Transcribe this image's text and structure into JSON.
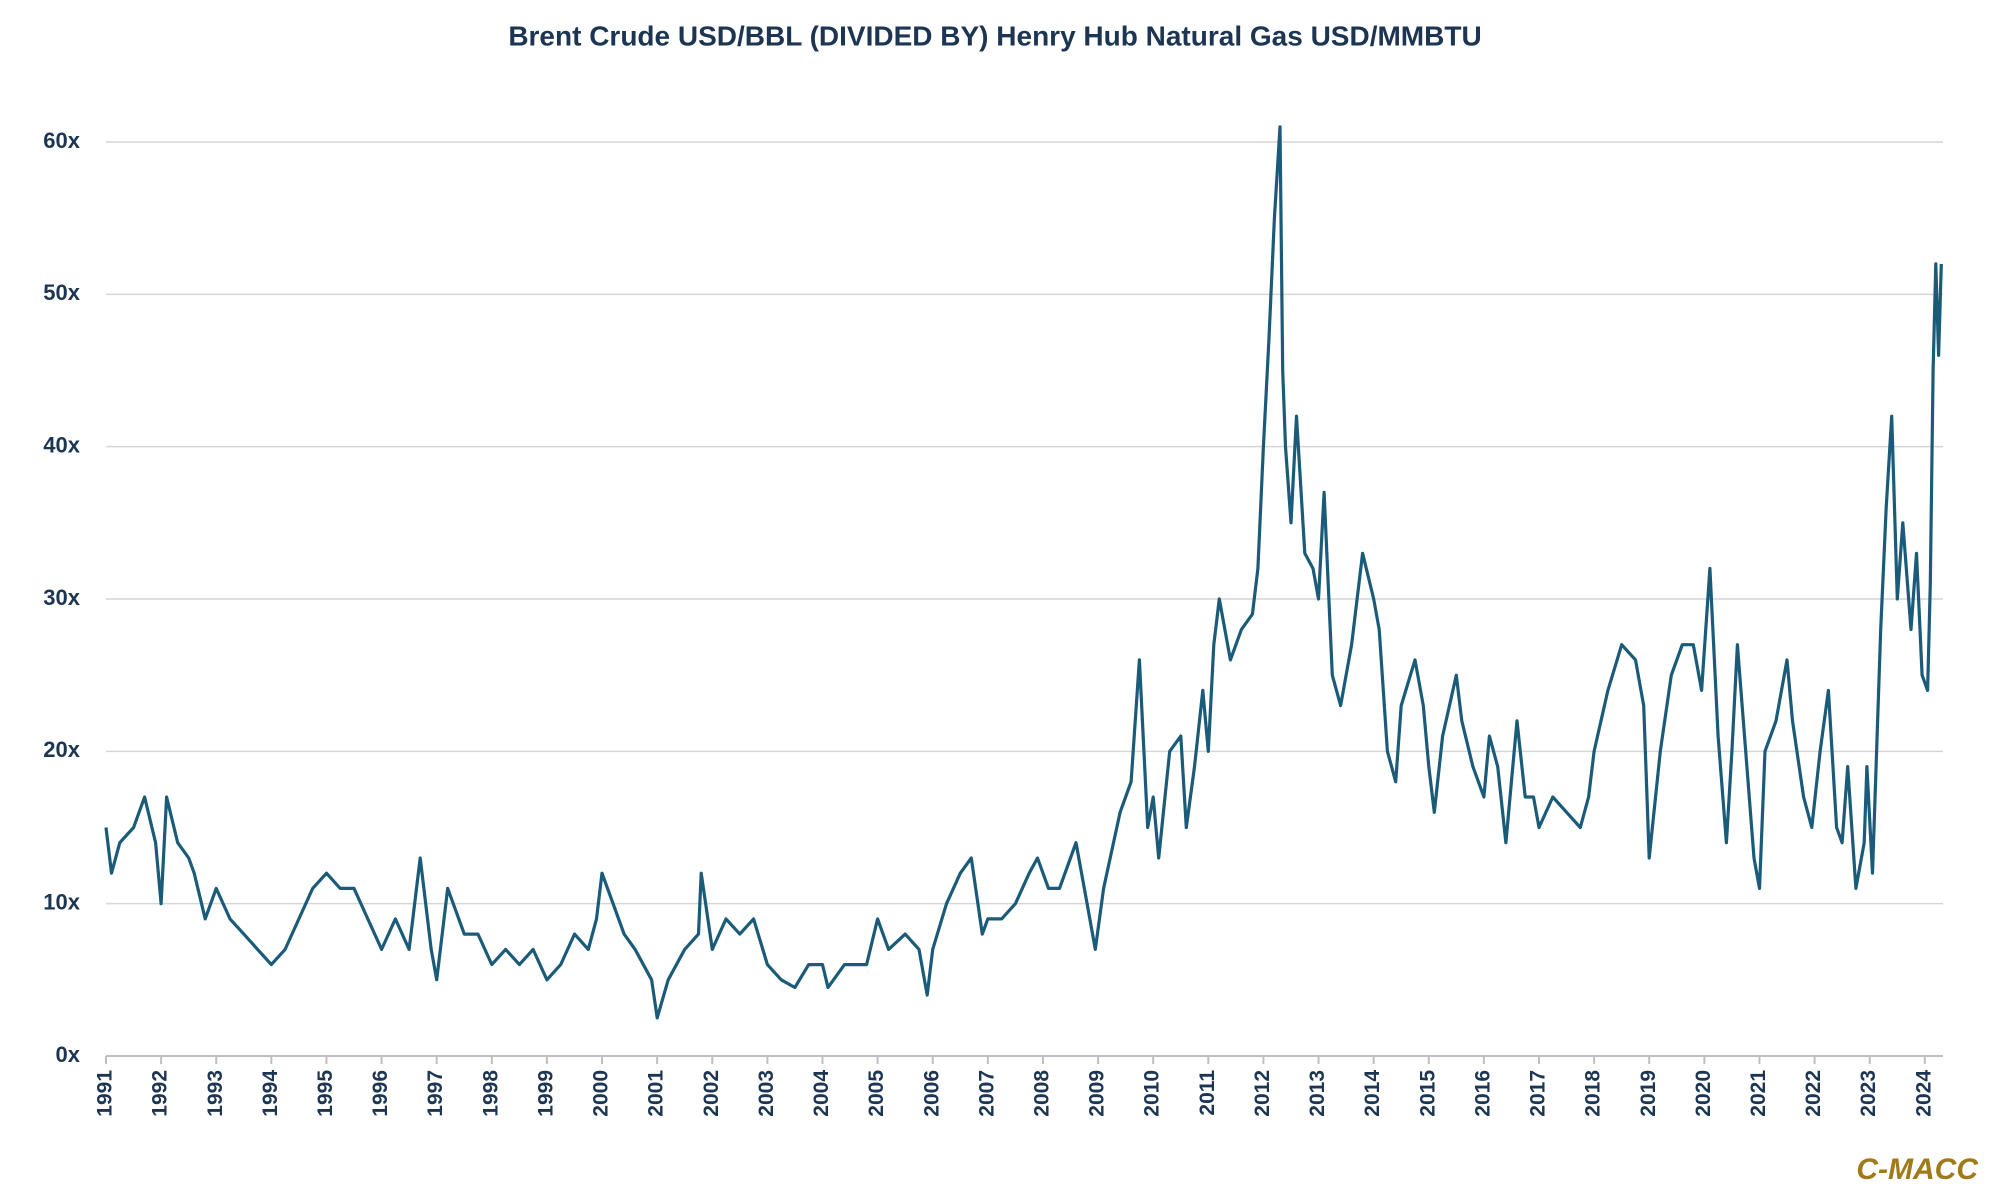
{
  "chart_data": {
    "type": "line",
    "title": "Brent Crude USD/BBL (DIVIDED BY) Henry Hub Natural Gas USD/MMBTU",
    "watermark": "C-MACC",
    "color": "#1b5b7a",
    "grid": true,
    "x": [
      1991.0,
      1991.1,
      1991.25,
      1991.5,
      1991.7,
      1991.9,
      1992.0,
      1992.1,
      1992.3,
      1992.5,
      1992.6,
      1992.8,
      1993.0,
      1993.25,
      1993.5,
      1993.75,
      1994.0,
      1994.25,
      1994.5,
      1994.75,
      1995.0,
      1995.25,
      1995.5,
      1995.75,
      1996.0,
      1996.25,
      1996.5,
      1996.7,
      1996.9,
      1997.0,
      1997.2,
      1997.5,
      1997.75,
      1998.0,
      1998.25,
      1998.5,
      1998.75,
      1999.0,
      1999.25,
      1999.5,
      1999.75,
      1999.9,
      2000.0,
      2000.2,
      2000.4,
      2000.6,
      2000.9,
      2001.0,
      2001.2,
      2001.5,
      2001.75,
      2001.8,
      2002.0,
      2002.25,
      2002.5,
      2002.75,
      2003.0,
      2003.25,
      2003.5,
      2003.75,
      2004.0,
      2004.1,
      2004.4,
      2004.6,
      2004.8,
      2005.0,
      2005.2,
      2005.5,
      2005.75,
      2005.9,
      2006.0,
      2006.25,
      2006.5,
      2006.7,
      2006.9,
      2007.0,
      2007.25,
      2007.5,
      2007.75,
      2007.9,
      2008.1,
      2008.3,
      2008.6,
      2008.8,
      2008.95,
      2009.1,
      2009.4,
      2009.6,
      2009.75,
      2009.9,
      2010.0,
      2010.1,
      2010.3,
      2010.5,
      2010.6,
      2010.75,
      2010.9,
      2011.0,
      2011.1,
      2011.2,
      2011.4,
      2011.6,
      2011.8,
      2011.9,
      2012.0,
      2012.1,
      2012.2,
      2012.3,
      2012.35,
      2012.4,
      2012.5,
      2012.6,
      2012.75,
      2012.9,
      2013.0,
      2013.1,
      2013.25,
      2013.4,
      2013.6,
      2013.8,
      2014.0,
      2014.1,
      2014.25,
      2014.4,
      2014.5,
      2014.75,
      2014.9,
      2015.0,
      2015.1,
      2015.25,
      2015.5,
      2015.6,
      2015.8,
      2016.0,
      2016.1,
      2016.25,
      2016.4,
      2016.5,
      2016.6,
      2016.75,
      2016.9,
      2017.0,
      2017.25,
      2017.5,
      2017.75,
      2017.9,
      2018.0,
      2018.25,
      2018.5,
      2018.75,
      2018.9,
      2019.0,
      2019.2,
      2019.4,
      2019.6,
      2019.8,
      2019.95,
      2020.1,
      2020.25,
      2020.4,
      2020.5,
      2020.6,
      2020.75,
      2020.9,
      2021.0,
      2021.1,
      2021.3,
      2021.5,
      2021.6,
      2021.8,
      2021.95,
      2022.1,
      2022.25,
      2022.4,
      2022.5,
      2022.6,
      2022.75,
      2022.9,
      2022.95,
      2023.05,
      2023.2,
      2023.3,
      2023.4,
      2023.5,
      2023.6,
      2023.75,
      2023.85,
      2023.95,
      2024.05,
      2024.1,
      2024.15,
      2024.2,
      2024.25,
      2024.3
    ],
    "values": [
      15,
      12,
      14,
      15,
      17,
      14,
      10,
      17,
      14,
      13,
      12,
      9,
      11,
      9,
      8,
      7,
      6,
      7,
      9,
      11,
      12,
      11,
      11,
      9,
      7,
      9,
      7,
      13,
      7,
      5,
      11,
      8,
      8,
      6,
      7,
      6,
      7,
      5,
      6,
      8,
      7,
      9,
      12,
      10,
      8,
      7,
      5,
      2.5,
      5,
      7,
      8,
      12,
      7,
      9,
      8,
      9,
      6,
      5,
      4.5,
      6,
      6,
      4.5,
      6,
      6,
      6,
      9,
      7,
      8,
      7,
      4,
      7,
      10,
      12,
      13,
      8,
      9,
      9,
      10,
      12,
      13,
      11,
      11,
      14,
      10,
      7,
      11,
      16,
      18,
      26,
      15,
      17,
      13,
      20,
      21,
      15,
      19,
      24,
      20,
      27,
      30,
      26,
      28,
      29,
      32,
      40,
      47,
      55,
      61,
      45,
      40,
      35,
      42,
      33,
      32,
      30,
      37,
      25,
      23,
      27,
      33,
      30,
      28,
      20,
      18,
      23,
      26,
      23,
      19,
      16,
      21,
      25,
      22,
      19,
      17,
      21,
      19,
      14,
      18,
      22,
      17,
      17,
      15,
      17,
      16,
      15,
      17,
      20,
      24,
      27,
      26,
      23,
      13,
      20,
      25,
      27,
      27,
      24,
      32,
      21,
      14,
      20,
      27,
      20,
      13,
      11,
      20,
      22,
      26,
      22,
      17,
      15,
      20,
      24,
      15,
      14,
      19,
      11,
      14,
      19,
      12,
      28,
      36,
      42,
      30,
      35,
      28,
      33,
      25,
      24,
      31,
      45,
      52,
      46,
      52
    ],
    "xlim": [
      1991,
      2024.33
    ],
    "xticks": [
      1991,
      1992,
      1993,
      1994,
      1995,
      1996,
      1997,
      1998,
      1999,
      2000,
      2001,
      2002,
      2003,
      2004,
      2005,
      2006,
      2007,
      2008,
      2009,
      2010,
      2011,
      2012,
      2013,
      2014,
      2015,
      2016,
      2017,
      2018,
      2019,
      2020,
      2021,
      2022,
      2023,
      2024
    ],
    "ylim": [
      0,
      60
    ],
    "yticks": [
      {
        "value": 0,
        "label": "0x"
      },
      {
        "value": 10,
        "label": "10x"
      },
      {
        "value": 20,
        "label": "20x"
      },
      {
        "value": 30,
        "label": "30x"
      },
      {
        "value": 40,
        "label": "40x"
      },
      {
        "value": 50,
        "label": "50x"
      },
      {
        "value": 60,
        "label": "60x"
      }
    ]
  }
}
